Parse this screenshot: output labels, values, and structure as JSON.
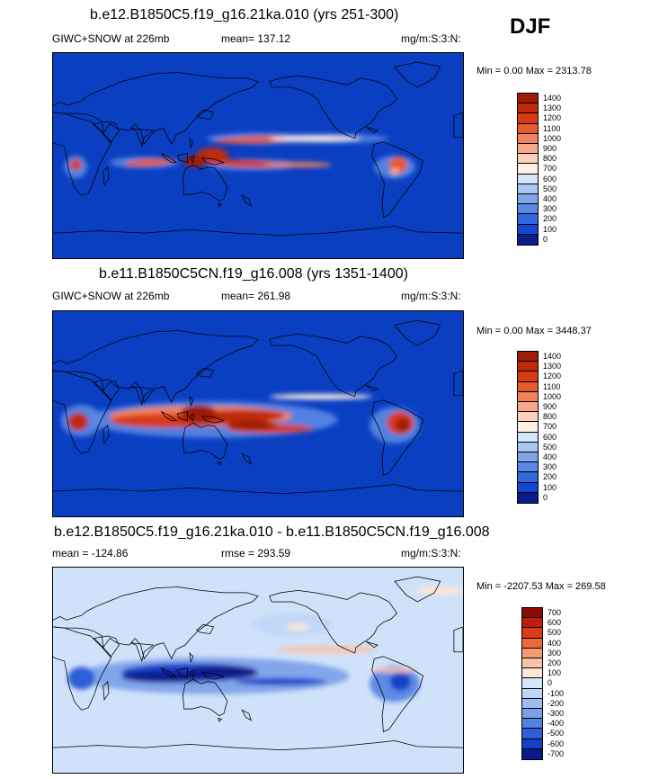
{
  "season_label": "DJF",
  "panels": [
    {
      "title": "b.e12.B1850C5.f19_g16.21ka.010 (yrs 251-300)",
      "left_label": "GIWC+SNOW at 226mb",
      "middle_label": "mean= 137.12",
      "right_label": "mg/m:S:3:N:",
      "minmax": "Min =   0.00 Max = 2313.78",
      "legend_levels": [
        "1400",
        "1300",
        "1200",
        "1100",
        "1000",
        "900",
        "800",
        "700",
        "600",
        "500",
        "400",
        "300",
        "200",
        "100",
        "0"
      ],
      "legend_colors": [
        "#a01c05",
        "#c02a0a",
        "#d83a14",
        "#e85a2c",
        "#f2825a",
        "#f6aa8a",
        "#fad2bc",
        "#fdf0e4",
        "#d6e6fa",
        "#aac6f2",
        "#80a6ea",
        "#5a88e4",
        "#3268dc",
        "#1248d4",
        "#0a1c8c"
      ]
    },
    {
      "title": "b.e11.B1850C5CN.f19_g16.008 (yrs 1351-1400)",
      "left_label": "GIWC+SNOW at 226mb",
      "middle_label": "mean= 261.98",
      "right_label": "mg/m:S:3:N:",
      "minmax": "Min =   0.00 Max = 3448.37",
      "legend_levels": [
        "1400",
        "1300",
        "1200",
        "1100",
        "1000",
        "900",
        "800",
        "700",
        "600",
        "500",
        "400",
        "300",
        "200",
        "100",
        "0"
      ],
      "legend_colors": [
        "#a01c05",
        "#c02a0a",
        "#d83a14",
        "#e85a2c",
        "#f2825a",
        "#f6aa8a",
        "#fad2bc",
        "#fdf0e4",
        "#d6e6fa",
        "#aac6f2",
        "#80a6ea",
        "#5a88e4",
        "#3268dc",
        "#1248d4",
        "#0a1c8c"
      ]
    },
    {
      "title": "b.e12.B1850C5.f19_g16.21ka.010 - b.e11.B1850C5CN.f19_g16.008",
      "left_label": "mean = -124.86",
      "middle_label": "rmse = 293.59",
      "right_label": "mg/m:S:3:N:",
      "minmax": "Min = -2207.53 Max = 269.58",
      "legend_levels": [
        "700",
        "600",
        "500",
        "400",
        "300",
        "200",
        "100",
        "0",
        "-100",
        "-200",
        "-300",
        "-400",
        "-500",
        "-600",
        "-700"
      ],
      "legend_colors": [
        "#8c0a05",
        "#c01e0c",
        "#dc3a18",
        "#ee6a3c",
        "#f69a74",
        "#fac2a6",
        "#fde6d6",
        "#d6e6fa",
        "#c0d6f6",
        "#9cbcf0",
        "#7aa0ea",
        "#5282e2",
        "#2e5ed8",
        "#1640c6",
        "#0a1a8c"
      ]
    }
  ],
  "chart_data": [
    {
      "type": "heatmap",
      "title": "b.e12.B1850C5.f19_g16.21ka.010 (yrs 251-300)",
      "variable": "GIWC+SNOW at 226mb",
      "units": "mg/m:S:3:N:",
      "mean": 137.12,
      "min": 0.0,
      "max": 2313.78,
      "contour_levels": [
        0,
        100,
        200,
        300,
        400,
        500,
        600,
        700,
        800,
        900,
        1000,
        1100,
        1200,
        1300,
        1400
      ],
      "colors": {
        "background": "#0a3fc2",
        "max_shading": "#a01c05"
      },
      "features": [
        {
          "lon": 50,
          "lat": 0,
          "value": 900
        },
        {
          "lon": 95,
          "lat": 5,
          "value": 1100
        },
        {
          "lon": 150,
          "lat": 3,
          "value": 1300
        },
        {
          "lon": 175,
          "lat": -5,
          "value": 1400
        },
        {
          "lon": 205,
          "lat": -8,
          "value": 1200
        },
        {
          "lon": 305,
          "lat": -15,
          "value": 1000
        },
        {
          "lon": 20,
          "lat": -10,
          "value": 1000
        }
      ]
    },
    {
      "type": "heatmap",
      "title": "b.e11.B1850C5CN.f19_g16.008 (yrs 1351-1400)",
      "variable": "GIWC+SNOW at 226mb",
      "units": "mg/m:S:3:N:",
      "mean": 261.98,
      "min": 0.0,
      "max": 3448.37,
      "contour_levels": [
        0,
        100,
        200,
        300,
        400,
        500,
        600,
        700,
        800,
        900,
        1000,
        1100,
        1200,
        1300,
        1400
      ],
      "colors": {
        "background": "#0a3fc2",
        "max_shading": "#a01c05"
      },
      "features": [
        {
          "lon": 20,
          "lat": -5,
          "value": 1400
        },
        {
          "lon": 80,
          "lat": -5,
          "value": 1300
        },
        {
          "lon": 130,
          "lat": 0,
          "value": 1400
        },
        {
          "lon": 175,
          "lat": -8,
          "value": 1400
        },
        {
          "lon": 300,
          "lat": -10,
          "value": 1400
        }
      ]
    },
    {
      "type": "heatmap",
      "title": "b.e12.B1850C5.f19_g16.21ka.010 - b.e11.B1850C5CN.f19_g16.008",
      "units": "mg/m:S:3:N:",
      "mean": -124.86,
      "rmse": 293.59,
      "min": -2207.53,
      "max": 269.58,
      "contour_levels": [
        -700,
        -600,
        -500,
        -400,
        -300,
        -200,
        -100,
        0,
        100,
        200,
        300,
        400,
        500,
        600,
        700
      ],
      "colors": {
        "background": "#cfe2fa",
        "max_shading": "#0a1a8c"
      },
      "features": [
        {
          "lon": 30,
          "lat": -5,
          "value": -600
        },
        {
          "lon": 90,
          "lat": -8,
          "value": -700
        },
        {
          "lon": 130,
          "lat": -5,
          "value": -700
        },
        {
          "lon": 170,
          "lat": -10,
          "value": -500
        },
        {
          "lon": 300,
          "lat": -10,
          "value": -600
        },
        {
          "lon": 200,
          "lat": 20,
          "value": 200
        }
      ]
    }
  ]
}
